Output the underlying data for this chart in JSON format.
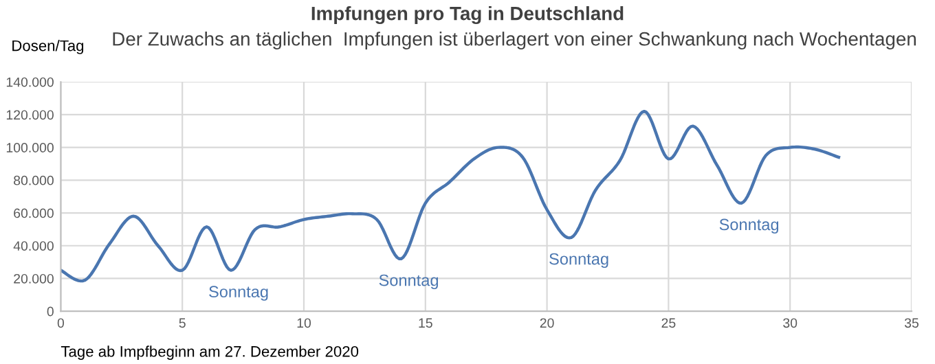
{
  "chart_data": {
    "type": "line",
    "title": "Impfungen pro Tag in Deutschland",
    "subtitle": "Der Zuwachs an täglichen  Impfungen ist überlagert von einer Schwankung nach Wochentagen",
    "ylabel": "Dosen/Tag",
    "xlabel": "Tage ab Impfbeginn am 27. Dezember 2020",
    "x": [
      0,
      1,
      2,
      3,
      4,
      5,
      6,
      7,
      8,
      9,
      10,
      11,
      12,
      13,
      14,
      15,
      16,
      17,
      18,
      19,
      20,
      21,
      22,
      23,
      24,
      25,
      26,
      27,
      28,
      29,
      30,
      31,
      32
    ],
    "series": [
      {
        "color": "#4a76b0",
        "values": [
          25000,
          19000,
          41000,
          58000,
          40000,
          25000,
          51500,
          25000,
          50000,
          51500,
          56000,
          58000,
          59500,
          56000,
          32000,
          66000,
          79000,
          93000,
          100000,
          94000,
          62000,
          45000,
          74000,
          92000,
          122000,
          93000,
          113000,
          89000,
          66000,
          95000,
          100000,
          99000,
          94000
        ]
      }
    ],
    "annotations": [
      {
        "text": "Sonntag",
        "x": 7,
        "y": 25000
      },
      {
        "text": "Sonntag",
        "x": 14,
        "y": 32000
      },
      {
        "text": "Sonntag",
        "x": 21,
        "y": 45000
      },
      {
        "text": "Sonntag",
        "x": 28,
        "y": 66000
      }
    ],
    "xlim": [
      0,
      35
    ],
    "xticks": [
      0,
      5,
      10,
      15,
      20,
      25,
      30,
      35
    ],
    "ylim": [
      0,
      140000
    ],
    "yticks": [
      0,
      {
        "value": 20000,
        "label": "20.000"
      },
      {
        "value": 40000,
        "label": "40.000"
      },
      {
        "value": 60000,
        "label": "60.000"
      },
      {
        "value": 80000,
        "label": "80.000"
      },
      {
        "value": 100000,
        "label": "100.000"
      },
      {
        "value": 120000,
        "label": "120.000"
      },
      {
        "value": 140000,
        "label": "140.000"
      }
    ],
    "grid": true,
    "marker": "none",
    "line_style": "solid"
  }
}
